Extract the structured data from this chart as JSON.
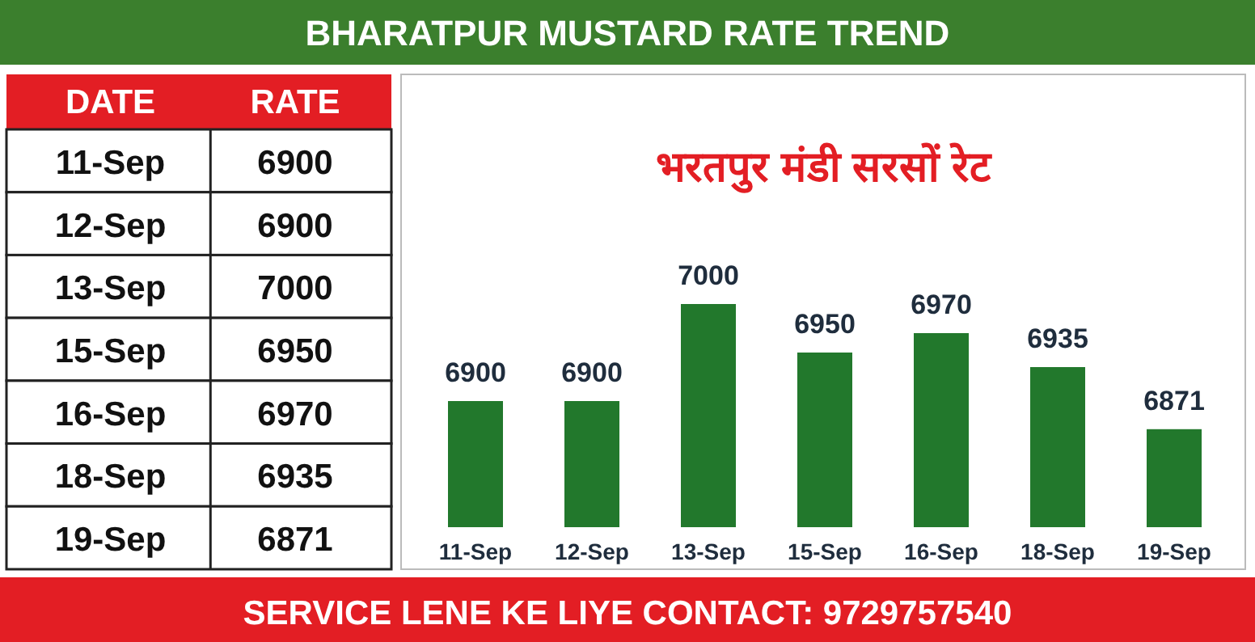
{
  "chart_data": [
    {
      "type": "other",
      "title": "BHARATPUR MUSTARD RATE TREND",
      "annotations": [
        "DATE",
        "RATE",
        "SERVICE LENE KE LIYE CONTACT: 9729757540"
      ],
      "categories": [
        "11-Sep",
        "12-Sep",
        "13-Sep",
        "15-Sep",
        "16-Sep",
        "18-Sep",
        "19-Sep"
      ],
      "values": [
        6900,
        6900,
        7000,
        6950,
        6970,
        6935,
        6871
      ],
      "data_labels": true
    },
    {
      "type": "bar",
      "title": "भरतपुर मंडी सरसों रेट",
      "categories": [
        "11-Sep",
        "12-Sep",
        "13-Sep",
        "15-Sep",
        "16-Sep",
        "18-Sep",
        "19-Sep"
      ],
      "values": [
        6900,
        6900,
        7000,
        6950,
        6970,
        6935,
        6871
      ],
      "color": "#22782c",
      "ylim": [
        6770,
        7000
      ],
      "data_labels": true
    }
  ]
}
